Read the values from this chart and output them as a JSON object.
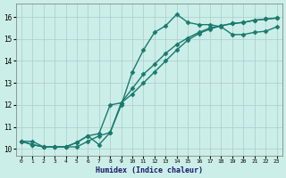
{
  "xlabel": "Humidex (Indice chaleur)",
  "background_color": "#cceee8",
  "grid_color": "#aacccc",
  "line_color": "#1a7a6e",
  "xlim": [
    -0.5,
    23.5
  ],
  "ylim": [
    9.7,
    16.6
  ],
  "xticks": [
    0,
    1,
    2,
    3,
    4,
    5,
    6,
    7,
    8,
    9,
    10,
    11,
    12,
    13,
    14,
    15,
    16,
    17,
    18,
    19,
    20,
    21,
    22,
    23
  ],
  "yticks": [
    10,
    11,
    12,
    13,
    14,
    15,
    16
  ],
  "line1_x": [
    0,
    1,
    2,
    3,
    4,
    5,
    6,
    7,
    8,
    9,
    10,
    11,
    12,
    13,
    14,
    15,
    16,
    17,
    18,
    19,
    20,
    21,
    22,
    23
  ],
  "line1_y": [
    10.35,
    10.35,
    10.1,
    10.1,
    10.1,
    10.1,
    10.35,
    10.6,
    10.75,
    12.0,
    13.5,
    14.5,
    15.3,
    15.6,
    16.12,
    15.75,
    15.65,
    15.65,
    15.55,
    15.2,
    15.2,
    15.3,
    15.35,
    15.55
  ],
  "line2_x": [
    0,
    1,
    2,
    3,
    4,
    5,
    6,
    7,
    8,
    9,
    10,
    11,
    12,
    13,
    14,
    15,
    16,
    17,
    18,
    19,
    20,
    21,
    22,
    23
  ],
  "line2_y": [
    10.35,
    10.2,
    10.1,
    10.1,
    10.1,
    10.3,
    10.6,
    10.7,
    12.0,
    12.1,
    12.75,
    13.4,
    13.85,
    14.35,
    14.75,
    15.05,
    15.3,
    15.5,
    15.6,
    15.7,
    15.75,
    15.85,
    15.9,
    15.95
  ],
  "line3_x": [
    0,
    1,
    2,
    3,
    4,
    5,
    6,
    7,
    8,
    9,
    10,
    11,
    12,
    13,
    14,
    15,
    16,
    17,
    18,
    19,
    20,
    21,
    22,
    23
  ],
  "line3_y": [
    10.35,
    10.2,
    10.1,
    10.1,
    10.1,
    10.3,
    10.6,
    10.2,
    10.75,
    12.1,
    12.5,
    13.0,
    13.5,
    14.0,
    14.5,
    14.95,
    15.25,
    15.45,
    15.6,
    15.7,
    15.75,
    15.85,
    15.9,
    15.95
  ],
  "marker": "D",
  "markersize": 2.5,
  "linewidth": 1.0
}
